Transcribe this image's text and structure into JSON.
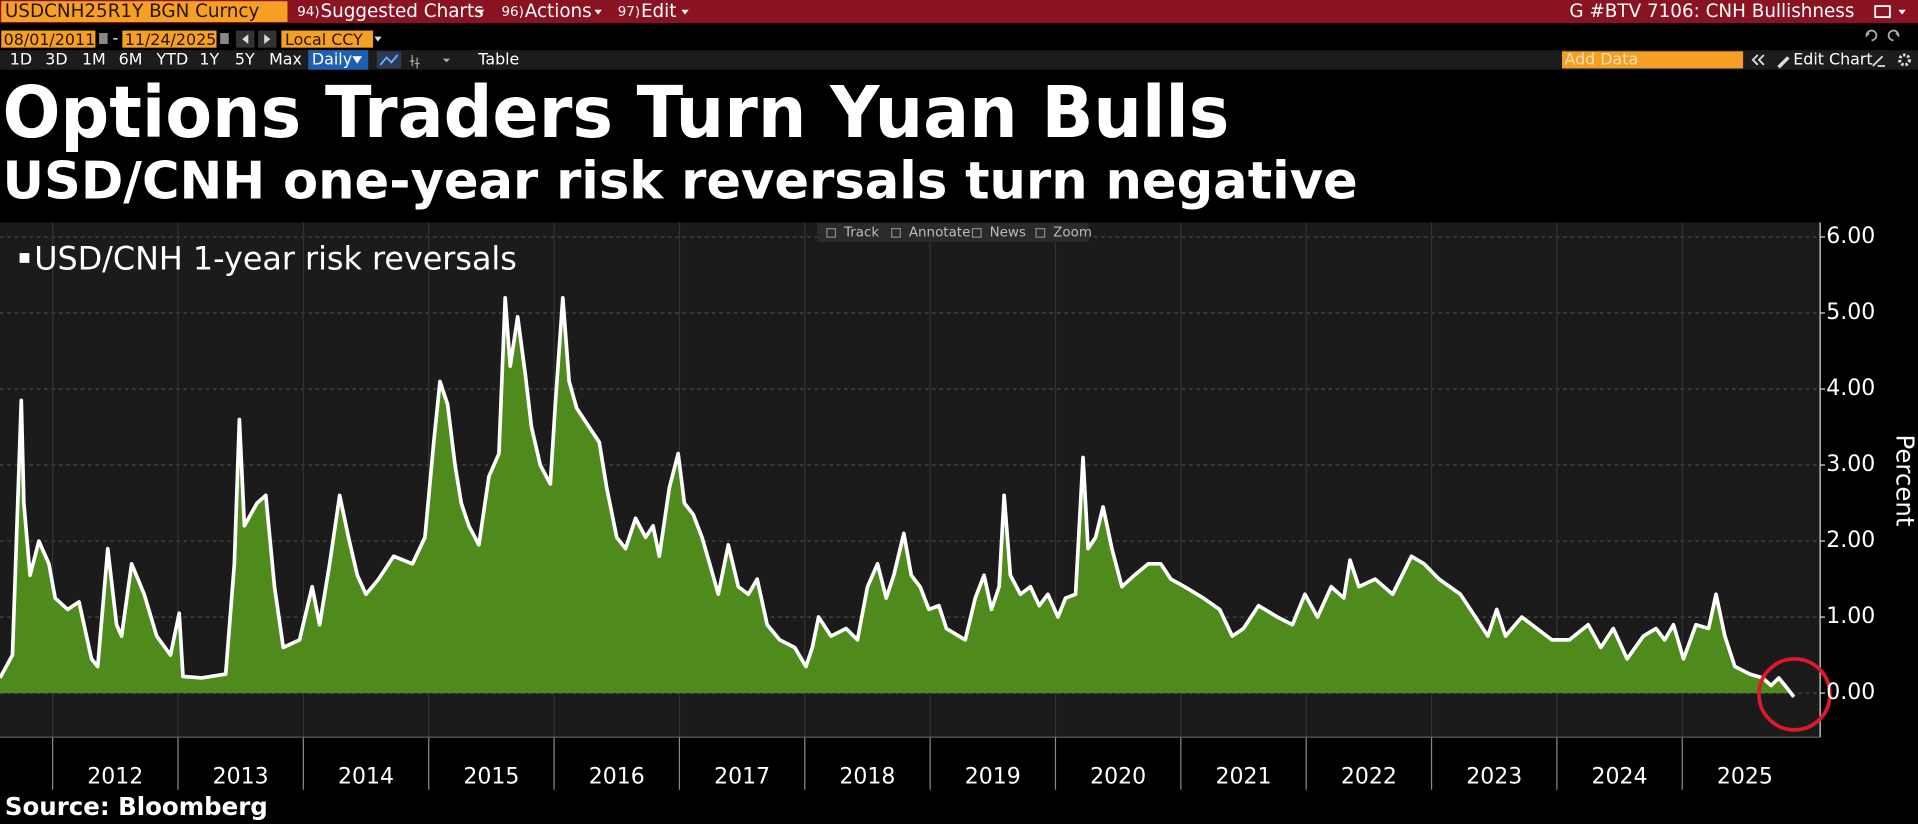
{
  "ui": {
    "ticker": "USDCNH25R1Y BGN Curncy",
    "menus": [
      {
        "code": "94)",
        "label": "Suggested Charts"
      },
      {
        "code": "96)",
        "label": "Actions"
      },
      {
        "code": "97)",
        "label": "Edit"
      }
    ],
    "page_title": "G #BTV 7106: CNH Bullishness",
    "start_date": "08/01/2011",
    "date_separator": "-",
    "end_date": "11/24/2025",
    "currency": "Local CCY",
    "ranges": [
      "1D",
      "3D",
      "1M",
      "6M",
      "YTD",
      "1Y",
      "5Y",
      "Max"
    ],
    "frequency": "Daily",
    "table": "Table",
    "add_data": "Add Data",
    "edit_chart": "Edit Chart",
    "chart_tools": [
      "Track",
      "Annotate",
      "News",
      "Zoom"
    ]
  },
  "chart_data": {
    "type": "area",
    "title": "Options Traders Turn Yuan Bulls",
    "subtitle": "USD/CNH one-year risk reversals turn negative",
    "source": "Source: Bloomberg",
    "y_label": "Percent",
    "x": [
      2011.58,
      2011.68,
      2011.75,
      2011.77,
      2011.82,
      2011.89,
      2011.97,
      2012.02,
      2012.12,
      2012.21,
      2012.31,
      2012.36,
      2012.44,
      2012.51,
      2012.55,
      2012.63,
      2012.73,
      2012.83,
      2012.94,
      2013.01,
      2013.04,
      2013.19,
      2013.38,
      2013.45,
      2013.49,
      2013.53,
      2013.63,
      2013.7,
      2013.77,
      2013.84,
      2013.97,
      2014.07,
      2014.13,
      2014.21,
      2014.29,
      2014.36,
      2014.43,
      2014.5,
      2014.6,
      2014.72,
      2014.87,
      2014.97,
      2015.04,
      2015.09,
      2015.15,
      2015.21,
      2015.26,
      2015.32,
      2015.4,
      2015.48,
      2015.56,
      2015.61,
      2015.65,
      2015.71,
      2015.77,
      2015.82,
      2015.89,
      2015.97,
      2016.01,
      2016.07,
      2016.12,
      2016.18,
      2016.26,
      2016.36,
      2016.42,
      2016.5,
      2016.57,
      2016.65,
      2016.73,
      2016.79,
      2016.84,
      2016.92,
      2016.99,
      2017.04,
      2017.11,
      2017.18,
      2017.25,
      2017.31,
      2017.39,
      2017.47,
      2017.55,
      2017.62,
      2017.7,
      2017.8,
      2017.92,
      2018.01,
      2018.06,
      2018.11,
      2018.21,
      2018.33,
      2018.42,
      2018.5,
      2018.58,
      2018.65,
      2018.71,
      2018.79,
      2018.85,
      2018.92,
      2018.99,
      2019.07,
      2019.13,
      2019.28,
      2019.36,
      2019.43,
      2019.49,
      2019.55,
      2019.59,
      2019.64,
      2019.72,
      2019.8,
      2019.87,
      2019.94,
      2020.02,
      2020.08,
      2020.16,
      2020.22,
      2020.26,
      2020.32,
      2020.38,
      2020.45,
      2020.53,
      2020.63,
      2020.74,
      2020.84,
      2020.92,
      2021.03,
      2021.18,
      2021.31,
      2021.41,
      2021.5,
      2021.62,
      2021.77,
      2021.89,
      2021.99,
      2022.09,
      2022.2,
      2022.3,
      2022.35,
      2022.42,
      2022.55,
      2022.69,
      2022.84,
      2022.94,
      2023.06,
      2023.23,
      2023.35,
      2023.45,
      2023.52,
      2023.59,
      2023.72,
      2023.84,
      2023.96,
      2024.1,
      2024.25,
      2024.35,
      2024.45,
      2024.56,
      2024.69,
      2024.79,
      2024.86,
      2024.93,
      2025.01,
      2025.11,
      2025.21,
      2025.27,
      2025.34,
      2025.42,
      2025.54,
      2025.64,
      2025.71,
      2025.77,
      2025.83,
      2025.89
    ],
    "series": [
      {
        "name": "USD/CNH 1-year risk reversals",
        "color": "#4e8a1c",
        "line_color": "#ffffff",
        "values": [
          0.2,
          0.5,
          3.85,
          2.5,
          1.55,
          2.0,
          1.7,
          1.25,
          1.1,
          1.2,
          0.45,
          0.35,
          1.9,
          0.9,
          0.75,
          1.7,
          1.3,
          0.75,
          0.5,
          1.05,
          0.22,
          0.2,
          0.25,
          1.7,
          3.6,
          2.2,
          2.5,
          2.6,
          1.4,
          0.6,
          0.7,
          1.4,
          0.9,
          1.7,
          2.6,
          2.05,
          1.55,
          1.3,
          1.5,
          1.8,
          1.7,
          2.05,
          3.3,
          4.1,
          3.8,
          3.0,
          2.5,
          2.2,
          1.95,
          2.85,
          3.15,
          5.2,
          4.3,
          4.95,
          4.2,
          3.5,
          3.0,
          2.75,
          3.8,
          5.2,
          4.1,
          3.75,
          3.55,
          3.3,
          2.7,
          2.05,
          1.9,
          2.3,
          2.05,
          2.2,
          1.8,
          2.7,
          3.15,
          2.5,
          2.35,
          2.05,
          1.65,
          1.3,
          1.95,
          1.4,
          1.3,
          1.5,
          0.9,
          0.7,
          0.6,
          0.35,
          0.6,
          1.0,
          0.75,
          0.85,
          0.7,
          1.4,
          1.7,
          1.25,
          1.55,
          2.1,
          1.55,
          1.4,
          1.1,
          1.15,
          0.85,
          0.7,
          1.25,
          1.55,
          1.1,
          1.4,
          2.6,
          1.55,
          1.3,
          1.4,
          1.15,
          1.3,
          1.0,
          1.25,
          1.3,
          3.1,
          1.9,
          2.05,
          2.45,
          1.9,
          1.4,
          1.55,
          1.7,
          1.7,
          1.5,
          1.4,
          1.25,
          1.1,
          0.75,
          0.85,
          1.15,
          1.0,
          0.9,
          1.3,
          1.0,
          1.4,
          1.25,
          1.75,
          1.4,
          1.5,
          1.3,
          1.8,
          1.7,
          1.5,
          1.3,
          1.0,
          0.75,
          1.1,
          0.75,
          1.0,
          0.85,
          0.7,
          0.7,
          0.9,
          0.6,
          0.85,
          0.45,
          0.75,
          0.85,
          0.7,
          0.9,
          0.45,
          0.9,
          0.85,
          1.3,
          0.75,
          0.35,
          0.25,
          0.2,
          0.1,
          0.2,
          0.08,
          -0.05
        ]
      }
    ],
    "xlim": [
      2011.58,
      2026.1
    ],
    "ylim": [
      -0.58,
      6.19
    ],
    "xticks": [
      2012,
      2013,
      2014,
      2015,
      2016,
      2017,
      2018,
      2019,
      2020,
      2021,
      2022,
      2023,
      2024,
      2025
    ],
    "yticks": [
      {
        "value": 0,
        "label": "0.00"
      },
      {
        "value": 1,
        "label": "1.00"
      },
      {
        "value": 2,
        "label": "2.00"
      },
      {
        "value": 3,
        "label": "3.00"
      },
      {
        "value": 4,
        "label": "4.00"
      },
      {
        "value": 5,
        "label": "5.00"
      },
      {
        "value": 6,
        "label": "6.00"
      }
    ],
    "grid": true
  }
}
